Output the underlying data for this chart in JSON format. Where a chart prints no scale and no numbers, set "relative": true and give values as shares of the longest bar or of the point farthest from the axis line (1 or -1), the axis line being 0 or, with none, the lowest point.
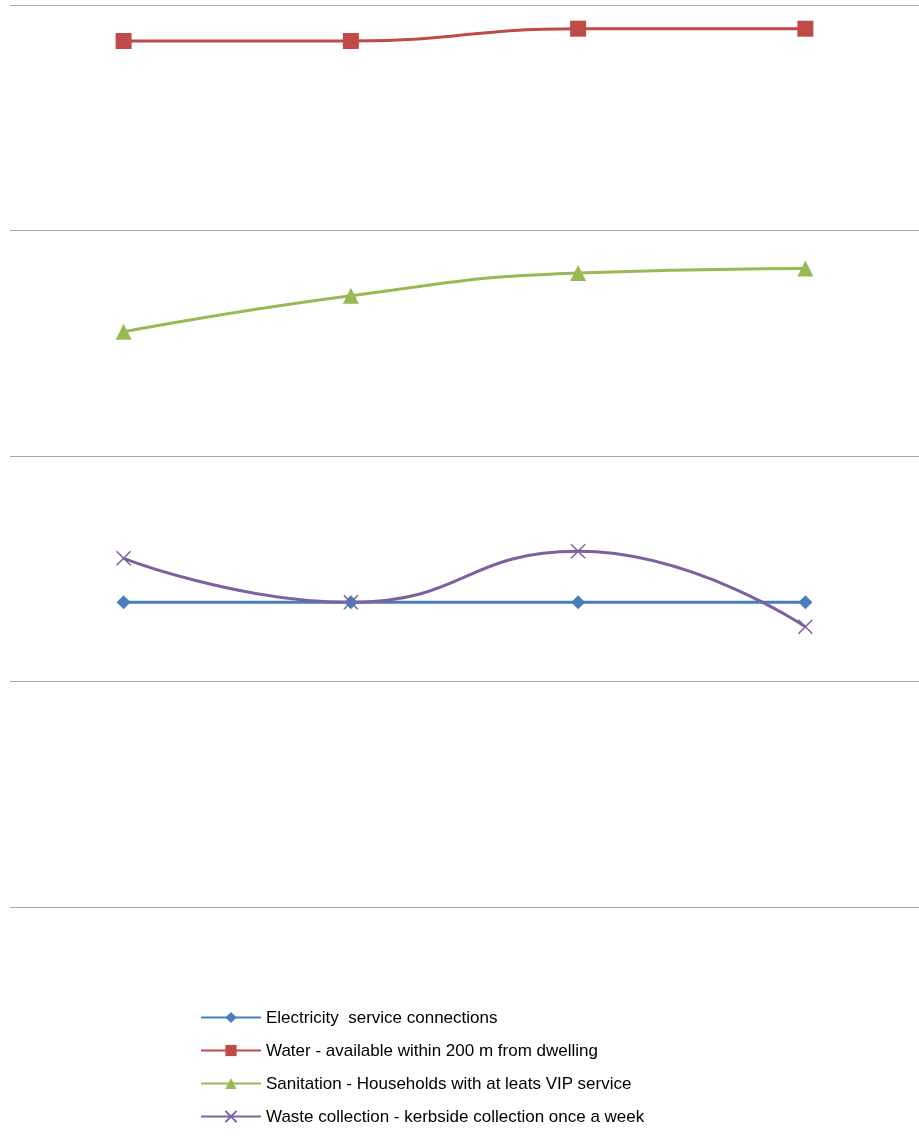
{
  "chart_data": {
    "type": "line",
    "relative": true,
    "grid": "y",
    "legend": "bottom",
    "categories": [
      null,
      null,
      null,
      null
    ],
    "series": [
      {
        "name": "Electricity  service connections",
        "color": "#4a7ebb",
        "marker": "diamond",
        "values": [
          0.347,
          0.347,
          0.347,
          0.347
        ]
      },
      {
        "name": "Water - available within 200 m from dwelling",
        "color": "#be4b48",
        "marker": "square",
        "values": [
          0.986,
          0.986,
          1,
          1
        ]
      },
      {
        "name": "Sanitation - Households with at leats VIP service",
        "color": "#98b954",
        "marker": "triangle",
        "values": [
          0.655,
          0.696,
          0.722,
          0.727
        ]
      },
      {
        "name": "Waste collection - kerbside collection once a week",
        "color": "#7d60a0",
        "marker": "cross",
        "values": [
          0.397,
          0.347,
          0.405,
          0.319
        ]
      }
    ]
  }
}
